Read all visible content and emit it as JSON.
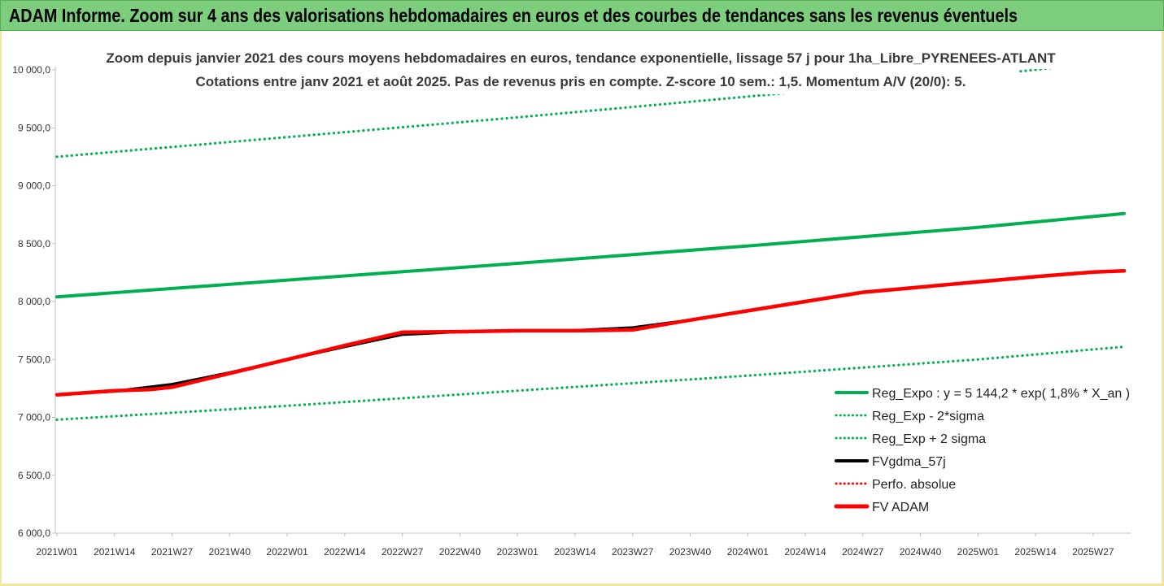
{
  "banner": {
    "title": "ADAM Informe. Zoom sur 4 ans des valorisations hebdomadaires en euros et des courbes de tendances sans les revenus éventuels"
  },
  "chart_data": {
    "type": "line",
    "title": "Zoom depuis janvier 2021 des cours moyens hebdomadaires en euros, tendance exponentielle, lissage 57 j pour 1ha_Libre_PYRENEES-ATLANT",
    "subtitle": "Cotations entre janv 2021 et août 2025.  Pas de revenus pris en compte. Z-score 10 sem.: 1,5. Momentum A/V (20/0): 5.",
    "xlabel": "",
    "ylabel": "",
    "ylim": [
      6000,
      10000
    ],
    "y_ticks": [
      "6 000,0",
      "6 500,0",
      "7 000,0",
      "7 500,0",
      "8 000,0",
      "8 500,0",
      "9 000,0",
      "9 500,0",
      "10 000,0"
    ],
    "x_ticks": [
      "2021W01",
      "2021W14",
      "2021W27",
      "2021W40",
      "2022W01",
      "2022W14",
      "2022W27",
      "2022W40",
      "2023W01",
      "2023W14",
      "2023W27",
      "2023W40",
      "2024W01",
      "2024W14",
      "2024W27",
      "2024W40",
      "2025W01",
      "2025W14",
      "2025W27"
    ],
    "legend_position": "right",
    "grid": false,
    "series": [
      {
        "name": "Reg_Expo : y = 5 144,2 * exp( 1,8% *  X_an )",
        "color": "#00b050",
        "style": "solid",
        "x": [
          "2021W01",
          "2022W01",
          "2023W01",
          "2024W01",
          "2025W01",
          "2025W34"
        ],
        "values": [
          8040,
          8185,
          8330,
          8480,
          8640,
          8760
        ]
      },
      {
        "name": "Reg_Exp - 2*sigma",
        "color": "#00b050",
        "style": "dotted",
        "x": [
          "2021W01",
          "2022W01",
          "2023W01",
          "2024W01",
          "2025W01",
          "2025W34"
        ],
        "values": [
          6980,
          7100,
          7230,
          7360,
          7500,
          7610
        ]
      },
      {
        "name": "Reg_Exp + 2 sigma",
        "color": "#00b050",
        "style": "dotted",
        "x": [
          "2021W01",
          "2022W01",
          "2023W01",
          "2024W01",
          "2025W01",
          "2025W34"
        ],
        "values": [
          9250,
          9420,
          9590,
          9770,
          9950,
          10080
        ]
      },
      {
        "name": "FVgdma_57j",
        "color": "#000000",
        "style": "solid",
        "x": [
          "2021W01",
          "2021W14",
          "2021W27",
          "2021W40",
          "2022W01",
          "2022W14",
          "2022W27",
          "2022W40",
          "2023W01",
          "2023W14",
          "2023W27",
          "2023W40",
          "2024W01",
          "2024W14",
          "2024W27",
          "2024W40",
          "2025W01",
          "2025W14",
          "2025W27",
          "2025W34"
        ],
        "values": [
          7195,
          7225,
          7285,
          7385,
          7500,
          7610,
          7715,
          7740,
          7745,
          7750,
          7775,
          7840,
          7920,
          8000,
          8080,
          8125,
          8170,
          8215,
          8255,
          8265
        ]
      },
      {
        "name": "Perfo. absolue",
        "color": "#ff0000",
        "style": "dotted",
        "x": [],
        "values": []
      },
      {
        "name": "FV ADAM",
        "color": "#ff0000",
        "style": "solid",
        "x": [
          "2021W01",
          "2021W14",
          "2021W22",
          "2021W27",
          "2021W40",
          "2022W01",
          "2022W14",
          "2022W27",
          "2022W40",
          "2023W01",
          "2023W14",
          "2023W27",
          "2023W40",
          "2024W01",
          "2024W14",
          "2024W27",
          "2024W40",
          "2025W01",
          "2025W14",
          "2025W27",
          "2025W34"
        ],
        "values": [
          7195,
          7230,
          7240,
          7260,
          7380,
          7500,
          7620,
          7735,
          7740,
          7748,
          7748,
          7755,
          7840,
          7920,
          8000,
          8080,
          8125,
          8170,
          8215,
          8255,
          8265
        ]
      }
    ]
  }
}
